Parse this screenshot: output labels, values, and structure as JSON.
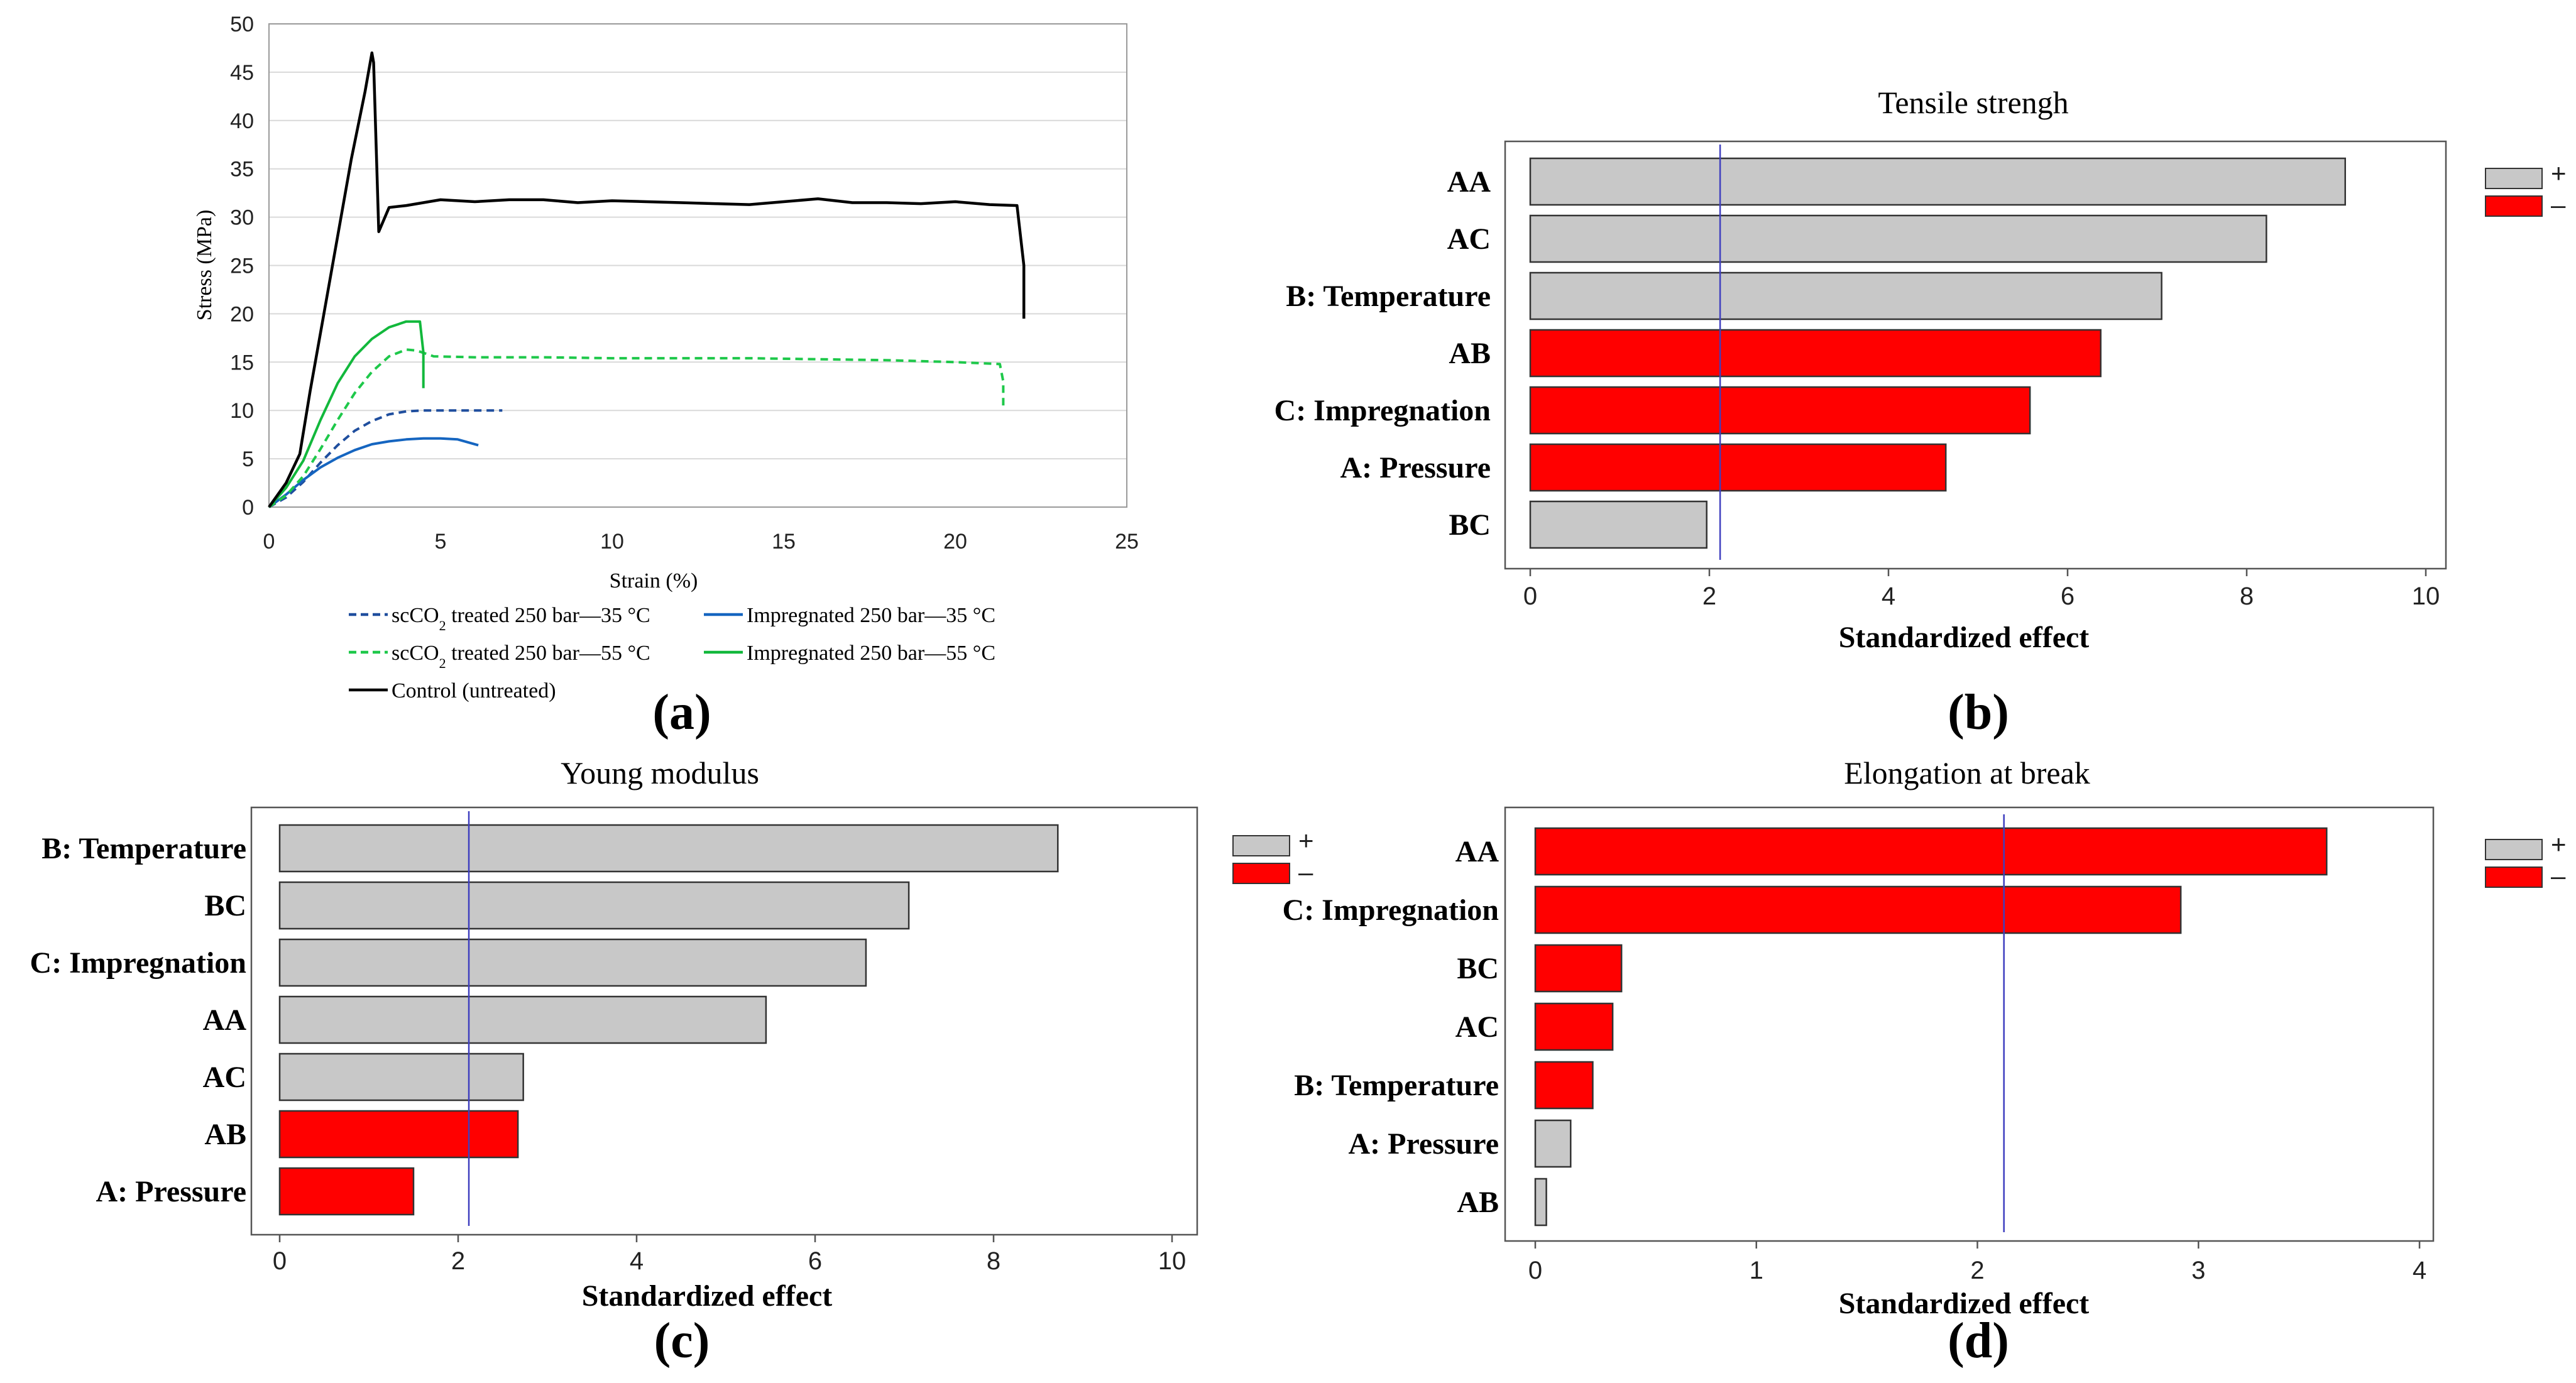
{
  "colors": {
    "positive": "#c8c8c8",
    "negative": "#ff0000",
    "significance_line": "#3f3fbf",
    "scco2_35": "#1f4e9e",
    "impregnated_35": "#1565c0",
    "scco2_55": "#1ec84a",
    "impregnated_55": "#12b83c",
    "control": "#000000"
  },
  "chart_data": [
    {
      "id": "a",
      "type": "line",
      "panel_label": "(a)",
      "title": "",
      "xlabel": "Strain (%)",
      "ylabel": "Stress (MPa)",
      "xlim": [
        0,
        25
      ],
      "ylim": [
        0,
        50
      ],
      "xticks": [
        0,
        5,
        10,
        15,
        20,
        25
      ],
      "yticks": [
        0,
        5,
        10,
        15,
        20,
        25,
        30,
        35,
        40,
        45,
        50
      ],
      "grid": "horizontal",
      "series": [
        {
          "key": "scco2_35",
          "name_prefix": "scCO",
          "name_sub": "2",
          "name_suffix": " treated 250 bar—35 °C",
          "style": "dashed",
          "x": [
            0,
            0.5,
            1,
            1.5,
            2,
            2.5,
            3,
            3.5,
            4,
            4.5,
            5,
            6,
            6.8
          ],
          "y": [
            0,
            1,
            2.6,
            4.6,
            6.4,
            7.9,
            8.9,
            9.6,
            9.9,
            10.0,
            10.0,
            10.0,
            10.0
          ]
        },
        {
          "key": "impregnated_35",
          "name_prefix": "Impregnated 250 bar—35 °C",
          "name_sub": "",
          "name_suffix": "",
          "style": "solid",
          "x": [
            0,
            0.5,
            1,
            1.5,
            2,
            2.5,
            3,
            3.5,
            4,
            4.5,
            5,
            5.5,
            6.1
          ],
          "y": [
            0,
            1.3,
            2.8,
            4.1,
            5.1,
            5.9,
            6.5,
            6.8,
            7.0,
            7.1,
            7.1,
            7.0,
            6.4
          ]
        },
        {
          "key": "scco2_55",
          "name_prefix": "scCO",
          "name_sub": "2",
          "name_suffix": " treated 250 bar—55 °C",
          "style": "dashed",
          "x": [
            0,
            0.5,
            1,
            1.5,
            2,
            2.5,
            3,
            3.5,
            4,
            4.3,
            4.8,
            6,
            8,
            10,
            12,
            14,
            16,
            18,
            20,
            21.3,
            21.4,
            21.4
          ],
          "y": [
            0,
            1.2,
            3.2,
            6.0,
            9.0,
            11.8,
            14.0,
            15.6,
            16.3,
            16.2,
            15.6,
            15.5,
            15.5,
            15.4,
            15.4,
            15.4,
            15.3,
            15.2,
            15.0,
            14.8,
            13,
            10.2
          ]
        },
        {
          "key": "impregnated_55",
          "name_prefix": "Impregnated 250 bar—55 °C",
          "name_sub": "",
          "name_suffix": "",
          "style": "solid",
          "x": [
            0,
            0.5,
            1,
            1.5,
            2,
            2.5,
            3,
            3.5,
            4,
            4.4,
            4.5,
            4.5
          ],
          "y": [
            0,
            2.0,
            4.8,
            9.0,
            12.8,
            15.6,
            17.4,
            18.6,
            19.2,
            19.2,
            16,
            12.3
          ]
        },
        {
          "key": "control",
          "name_prefix": "Control (untreated)",
          "name_sub": "",
          "name_suffix": "",
          "style": "solid",
          "x": [
            0,
            0.5,
            0.9,
            1.2,
            1.6,
            2.0,
            2.4,
            2.8,
            3.0,
            3.05,
            3.2,
            3.5,
            4,
            5,
            6,
            7,
            8,
            9,
            10,
            11,
            12,
            13,
            14,
            15,
            16,
            17,
            18,
            19,
            20,
            21,
            21.8,
            22.0,
            22.0
          ],
          "y": [
            0,
            2.5,
            5.5,
            12,
            20,
            28,
            36,
            43,
            47,
            46,
            28.5,
            31,
            31.2,
            31.8,
            31.6,
            31.8,
            31.8,
            31.5,
            31.7,
            31.6,
            31.5,
            31.4,
            31.3,
            31.6,
            31.9,
            31.5,
            31.5,
            31.4,
            31.6,
            31.3,
            31.2,
            25,
            19.5
          ]
        }
      ]
    },
    {
      "id": "b",
      "type": "bar",
      "orientation": "horizontal",
      "panel_label": "(b)",
      "title": "Tensile strengh",
      "xlabel": "Standardized effect",
      "xlim": [
        0,
        10
      ],
      "xticks": [
        0,
        2,
        4,
        6,
        8,
        10
      ],
      "significance_threshold": 2.12,
      "legend": [
        "+",
        "–"
      ],
      "categories": [
        "AA",
        "AC",
        "B: Temperature",
        "AB",
        "C: Impregnation",
        "A: Pressure",
        "BC"
      ],
      "values": [
        9.1,
        8.22,
        7.05,
        6.37,
        5.58,
        4.64,
        1.97
      ],
      "signs": [
        "+",
        "+",
        "+",
        "–",
        "–",
        "–",
        "+"
      ]
    },
    {
      "id": "c",
      "type": "bar",
      "orientation": "horizontal",
      "panel_label": "(c)",
      "title": "Young modulus",
      "xlabel": "Standardized effect",
      "xlim": [
        0,
        10
      ],
      "xticks": [
        0,
        2,
        4,
        6,
        8,
        10
      ],
      "significance_threshold": 2.12,
      "legend": [
        "+",
        "–"
      ],
      "categories": [
        "B: Temperature",
        "BC",
        "C: Impregnation",
        "AA",
        "AC",
        "AB",
        "A: Pressure"
      ],
      "values": [
        8.72,
        7.05,
        6.57,
        5.45,
        2.73,
        2.67,
        1.5
      ],
      "signs": [
        "+",
        "+",
        "+",
        "+",
        "+",
        "–",
        "–"
      ]
    },
    {
      "id": "d",
      "type": "bar",
      "orientation": "horizontal",
      "panel_label": "(d)",
      "title": "Elongation at break",
      "xlabel": "Standardized effect",
      "xlim": [
        0,
        4
      ],
      "xticks": [
        0,
        1,
        2,
        3,
        4
      ],
      "significance_threshold": 2.12,
      "legend": [
        "+",
        "–"
      ],
      "categories": [
        "AA",
        "C: Impregnation",
        "BC",
        "AC",
        "B: Temperature",
        "A: Pressure",
        "AB"
      ],
      "values": [
        3.58,
        2.92,
        0.39,
        0.35,
        0.26,
        0.16,
        0.05
      ],
      "signs": [
        "–",
        "–",
        "–",
        "–",
        "–",
        "+",
        "+"
      ]
    }
  ]
}
